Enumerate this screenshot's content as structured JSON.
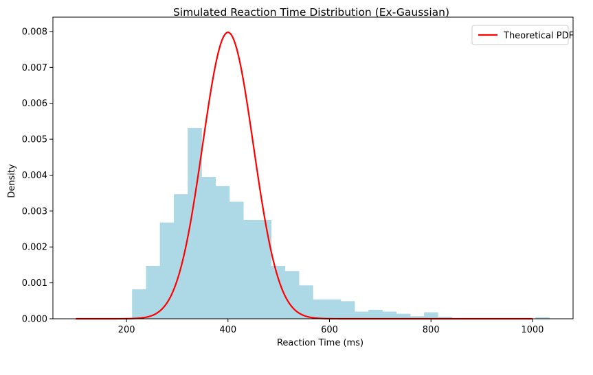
{
  "chart_data": {
    "type": "histogram",
    "title": "Simulated Reaction Time Distribution (Ex-Gaussian)",
    "xlabel": "Reaction Time (ms)",
    "ylabel": "Density",
    "xlim": [
      55,
      1080
    ],
    "ylim": [
      0,
      0.0084
    ],
    "xticks": [
      200,
      400,
      600,
      800,
      1000
    ],
    "xtick_labels": [
      "200",
      "400",
      "600",
      "800",
      "1000"
    ],
    "yticks": [
      0,
      0.001,
      0.002,
      0.003,
      0.004,
      0.005,
      0.006,
      0.007,
      0.008
    ],
    "ytick_labels": [
      "0.000",
      "0.001",
      "0.002",
      "0.003",
      "0.004",
      "0.005",
      "0.006",
      "0.007",
      "0.008"
    ],
    "histogram": {
      "bin_start": 211,
      "bin_width": 27.4,
      "densities": [
        0.00082,
        0.00147,
        0.00268,
        0.00347,
        0.00531,
        0.00395,
        0.0037,
        0.00326,
        0.00275,
        0.00275,
        0.00147,
        0.00133,
        0.00093,
        0.00054,
        0.00054,
        0.00049,
        0.0002,
        0.00025,
        0.0002,
        0.00014,
        7e-05,
        0.00018,
        5e-05,
        0,
        0,
        0,
        0,
        0,
        0,
        4e-05
      ],
      "color": "#add8e6"
    },
    "series": [
      {
        "name": "Theoretical PDF",
        "kind": "normal-pdf",
        "mean": 400,
        "sd": 50,
        "x_range": [
          100,
          1000
        ],
        "color": "#ff0000"
      }
    ],
    "legend": {
      "entries": [
        "Theoretical PDF"
      ],
      "location": "upper right"
    }
  }
}
